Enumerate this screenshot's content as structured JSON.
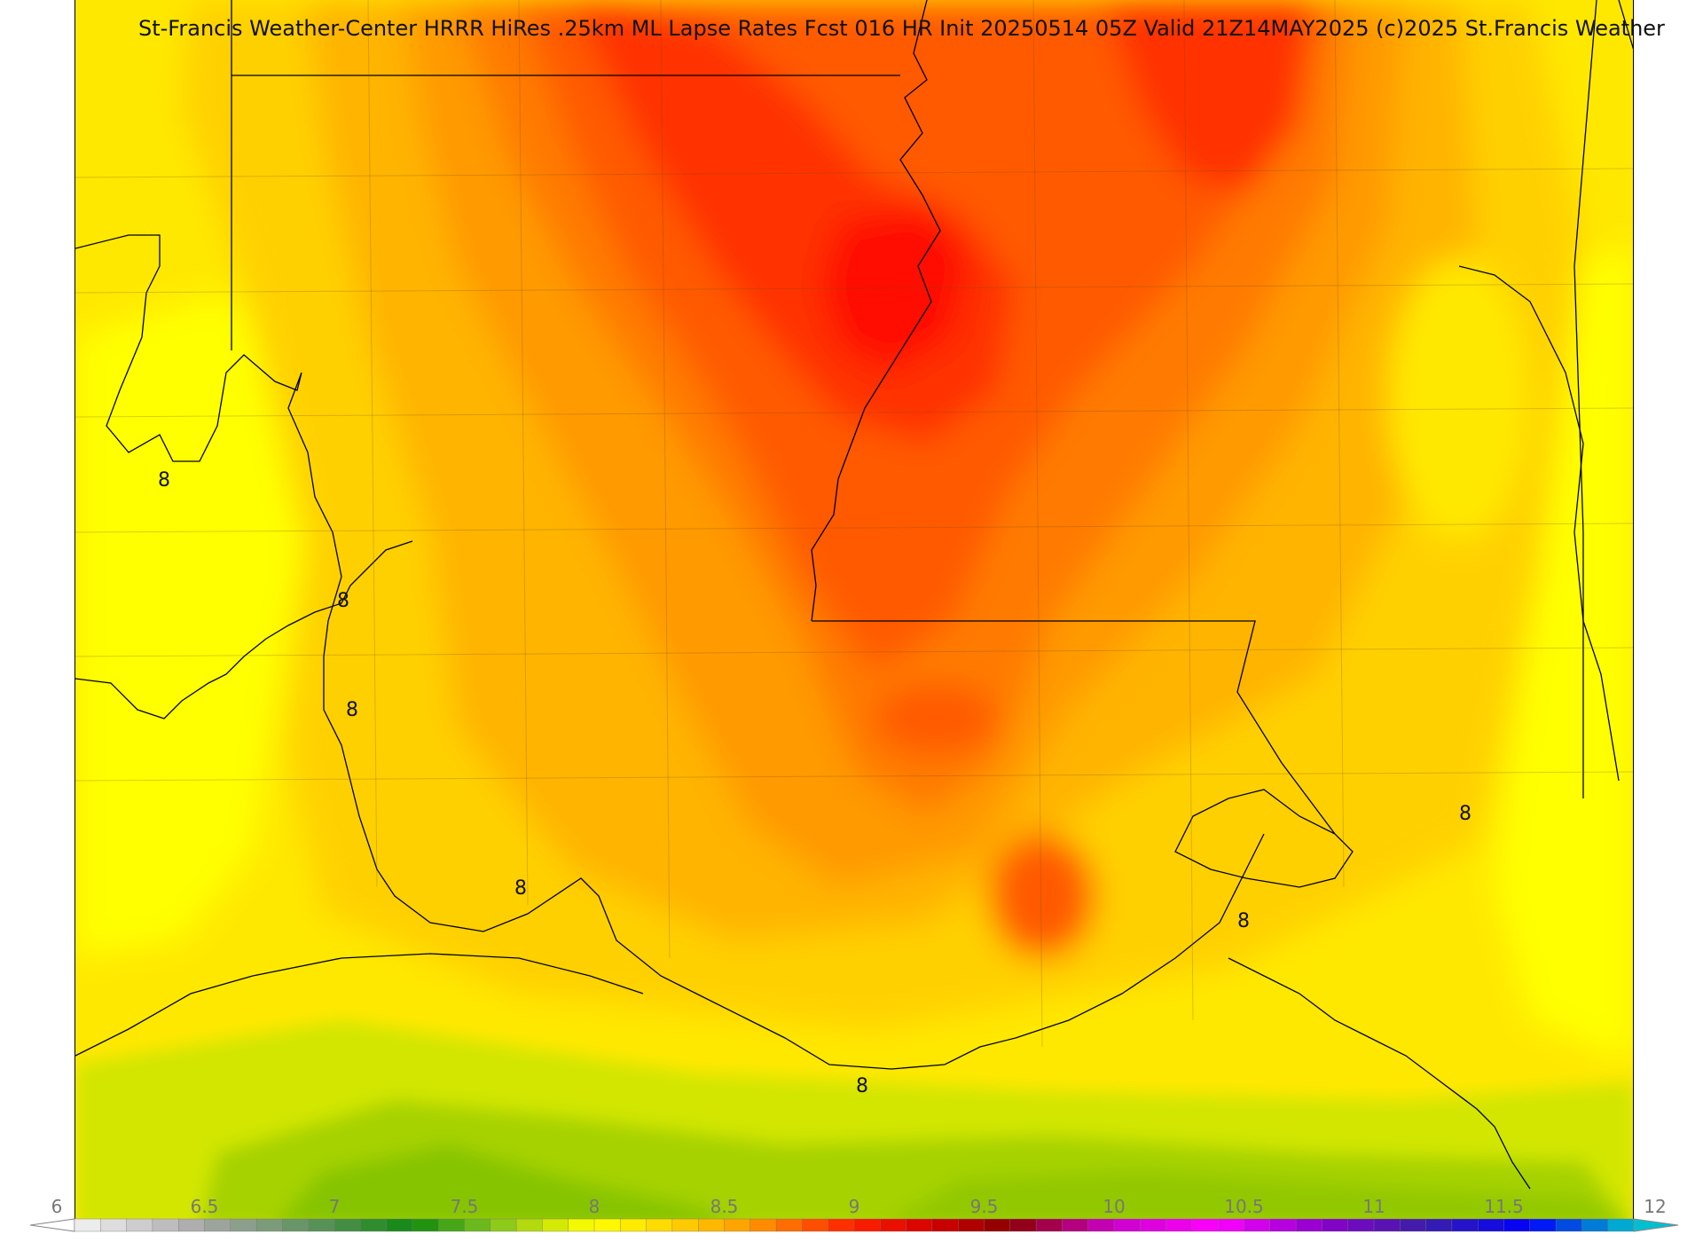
{
  "title": "St-Francis Weather-Center HRRR HiRes .25km ML Lapse Rates  Fcst 016 HR Init 20250514 05Z  Valid 21Z14MAY2025    (c)2025 St.Francis Weather",
  "contour_value_label": "8",
  "colorbar": {
    "min": 6,
    "max": 12,
    "step": 0.1,
    "tick_labels": [
      "6",
      "6.5",
      "7",
      "7.5",
      "8",
      "8.5",
      "9",
      "9.5",
      "10",
      "10.5",
      "11",
      "11.5",
      "12"
    ],
    "tick_values": [
      6,
      6.5,
      7,
      7.5,
      8,
      8.5,
      9,
      9.5,
      10,
      10.5,
      11,
      11.5,
      12
    ],
    "color_stops": [
      {
        "v": 6.0,
        "c": "#f4f4f4"
      },
      {
        "v": 6.5,
        "c": "#a6a6a6"
      },
      {
        "v": 7.0,
        "c": "#4f8f4f"
      },
      {
        "v": 7.3,
        "c": "#0f8a0f"
      },
      {
        "v": 7.6,
        "c": "#7dc21e"
      },
      {
        "v": 7.9,
        "c": "#e6f200"
      },
      {
        "v": 8.0,
        "c": "#ffff00"
      },
      {
        "v": 8.3,
        "c": "#ffd400"
      },
      {
        "v": 8.6,
        "c": "#ff9a00"
      },
      {
        "v": 9.0,
        "c": "#ff2000"
      },
      {
        "v": 9.3,
        "c": "#d50000"
      },
      {
        "v": 9.6,
        "c": "#8b0000"
      },
      {
        "v": 10.0,
        "c": "#cc00cc"
      },
      {
        "v": 10.4,
        "c": "#ff00ff"
      },
      {
        "v": 10.8,
        "c": "#8b00cc"
      },
      {
        "v": 11.2,
        "c": "#3b1fa8"
      },
      {
        "v": 11.6,
        "c": "#0000ff"
      },
      {
        "v": 11.8,
        "c": "#0064d8"
      },
      {
        "v": 12.0,
        "c": "#00c0d0"
      }
    ]
  },
  "field_colors": {
    "dark_green": "#86c400",
    "green": "#a6d200",
    "lime": "#d2e600",
    "yellow": "#ffff00",
    "yellow_gold": "#ffe800",
    "gold": "#ffd000",
    "orange_light": "#ffb400",
    "orange": "#ff9a00",
    "orange_dark": "#ff7a00",
    "red_orange": "#ff5a00",
    "red": "#ff3000",
    "deep_red": "#ff1000"
  }
}
